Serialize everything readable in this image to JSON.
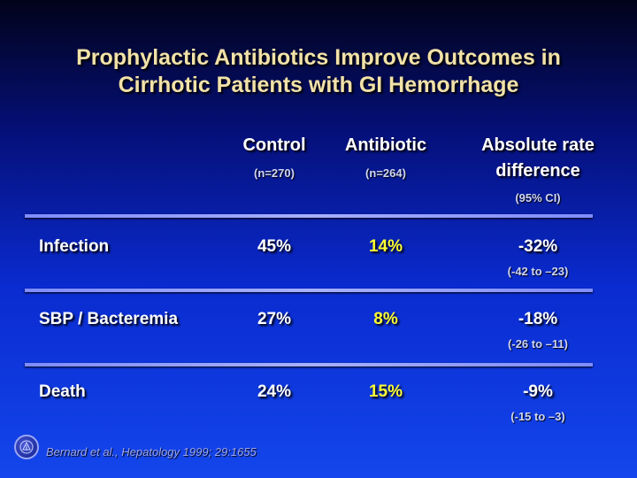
{
  "slide": {
    "title_line1": "Prophylactic Antibiotics Improve Outcomes in",
    "title_line2": "Cirrhotic Patients with GI Hemorrhage",
    "columns": {
      "control": {
        "label": "Control",
        "n": "(n=270)"
      },
      "antibiotic": {
        "label": "Antibiotic",
        "n": "(n=264)"
      },
      "difference": {
        "label_line1": "Absolute rate",
        "label_line2": "difference",
        "ci_label": "(95% CI)"
      }
    },
    "rows": [
      {
        "label": "Infection",
        "control": "45%",
        "antibiotic": "14%",
        "difference": "-32%",
        "ci": "(-42 to –23)"
      },
      {
        "label": "SBP / Bacteremia",
        "control": "27%",
        "antibiotic": "8%",
        "difference": "-18%",
        "ci": "(-26 to –11)"
      },
      {
        "label": "Death",
        "control": "24%",
        "antibiotic": "15%",
        "difference": "-9%",
        "ci": "(-15 to –3)"
      }
    ],
    "citation": "Bernard et al., Hepatology 1999; 29:1655"
  },
  "colors": {
    "title": "#f2e2a8",
    "antibiotic_values": "#ffff33",
    "divider": "#a7b0ff"
  }
}
